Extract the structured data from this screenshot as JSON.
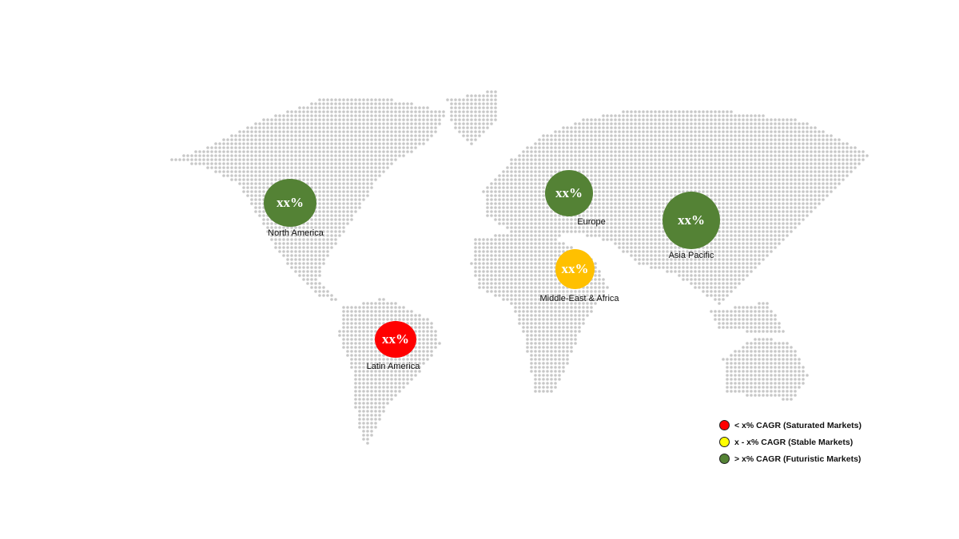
{
  "regions": [
    {
      "name": "North America",
      "value": "xx%",
      "status": "futuristic"
    },
    {
      "name": "Europe",
      "value": "xx%",
      "status": "futuristic"
    },
    {
      "name": "Asia Pacific",
      "value": "xx%",
      "status": "futuristic"
    },
    {
      "name": "Middle-East & Africa",
      "value": "xx%",
      "status": "stable-amber"
    },
    {
      "name": "Latin America",
      "value": "xx%",
      "status": "saturated"
    }
  ],
  "colors": {
    "futuristic": "#548235",
    "stable": "#ffff00",
    "stable-amber": "#ffc000",
    "saturated": "#ff0000",
    "land_dots": "#c8c8c8"
  },
  "legend": [
    {
      "label": "< x% CAGR (Saturated Markets)",
      "color": "#ff0000"
    },
    {
      "label": "x - x% CAGR (Stable Markets)",
      "color": "#ffff00"
    },
    {
      "label": "> x% CAGR (Futuristic Markets)",
      "color": "#548235"
    }
  ]
}
